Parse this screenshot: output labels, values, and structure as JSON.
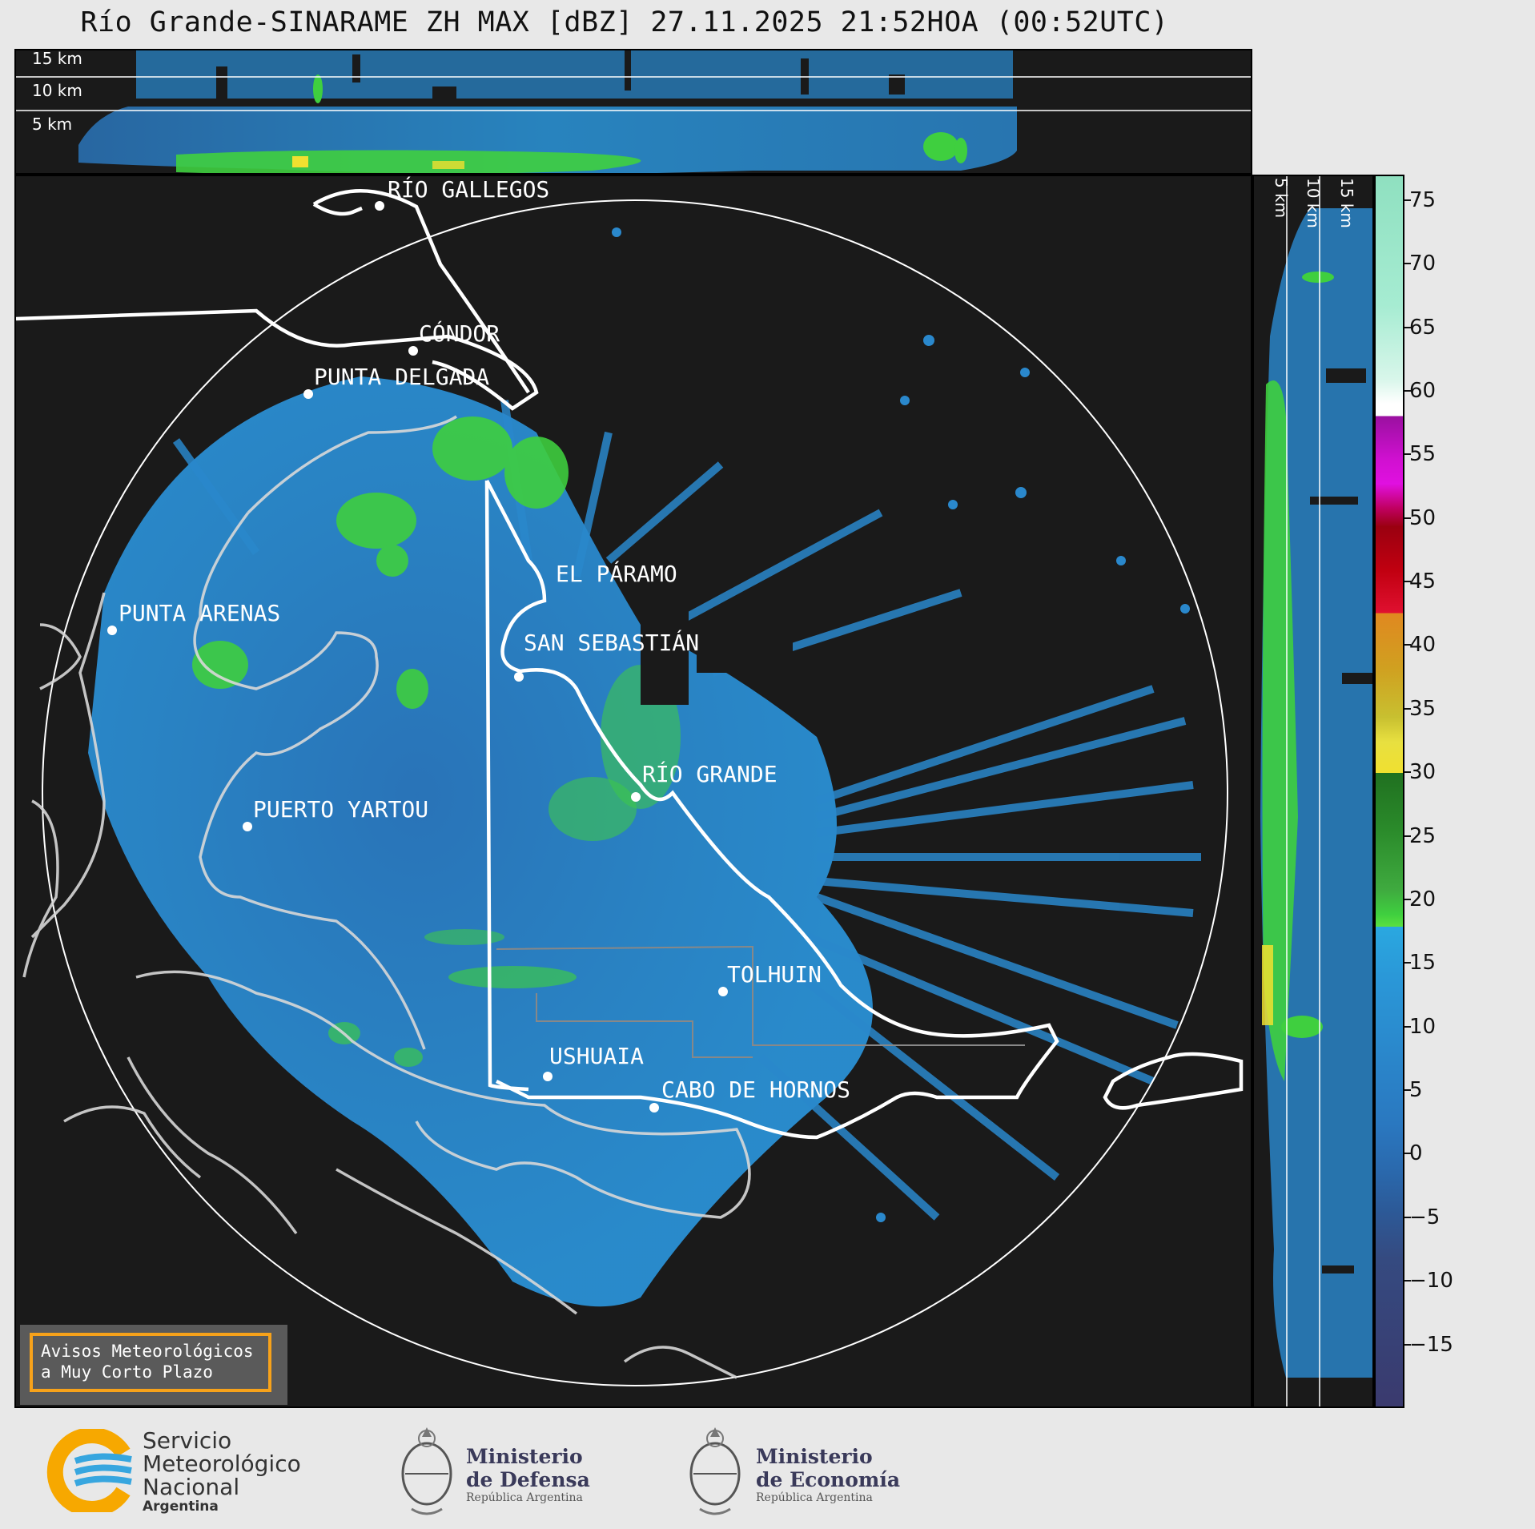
{
  "title": "Río Grande-SINARAME ZH MAX [dBZ] 27.11.2025 21:52HOA (00:52UTC)",
  "top_panel": {
    "km_labels": [
      "15 km",
      "10 km",
      "5 km"
    ]
  },
  "side_panel": {
    "km_labels": [
      "5 km",
      "10 km",
      "15 km"
    ]
  },
  "colorbar": {
    "unit": "dBZ",
    "ticks": [
      "75",
      "70",
      "65",
      "60",
      "55",
      "50",
      "45",
      "40",
      "35",
      "30",
      "25",
      "20",
      "15",
      "10",
      "5",
      "0",
      "−5",
      "−10",
      "−15"
    ],
    "scale_range": [
      -20,
      77
    ],
    "colors": {
      "low": "#3a3a6e",
      "blue": "#2a8fd0",
      "green": "#3fcf3f",
      "yellow": "#f0e030",
      "orange": "#e08820",
      "red": "#d0102a",
      "magenta": "#e010e0",
      "white": "#ffffff",
      "mint": "#8fe0c0"
    }
  },
  "map": {
    "range_ring": "white circle",
    "cities": [
      {
        "name": "RÍO GALLEGOS"
      },
      {
        "name": "CÓNDOR"
      },
      {
        "name": "PUNTA DELGADA"
      },
      {
        "name": "EL PÁRAMO"
      },
      {
        "name": "PUNTA ARENAS"
      },
      {
        "name": "SAN SEBASTIÁN"
      },
      {
        "name": "RÍO GRANDE"
      },
      {
        "name": "PUERTO YARTOU"
      },
      {
        "name": "TOLHUIN"
      },
      {
        "name": "USHUAIA"
      },
      {
        "name": "CABO DE HORNOS"
      }
    ]
  },
  "warning": {
    "line1": "Avisos Meteorológicos",
    "line2": "a Muy Corto Plazo",
    "border_color": "#f7a21a"
  },
  "logos": {
    "smn": {
      "line1": "Servicio",
      "line2": "Meteorológico",
      "line3": "Nacional",
      "line4": "Argentina"
    },
    "defensa": {
      "line1": "Ministerio",
      "line2": "de Defensa",
      "line3": "República Argentina"
    },
    "economia": {
      "line1": "Ministerio",
      "line2": "de Economía",
      "line3": "República Argentina"
    }
  }
}
